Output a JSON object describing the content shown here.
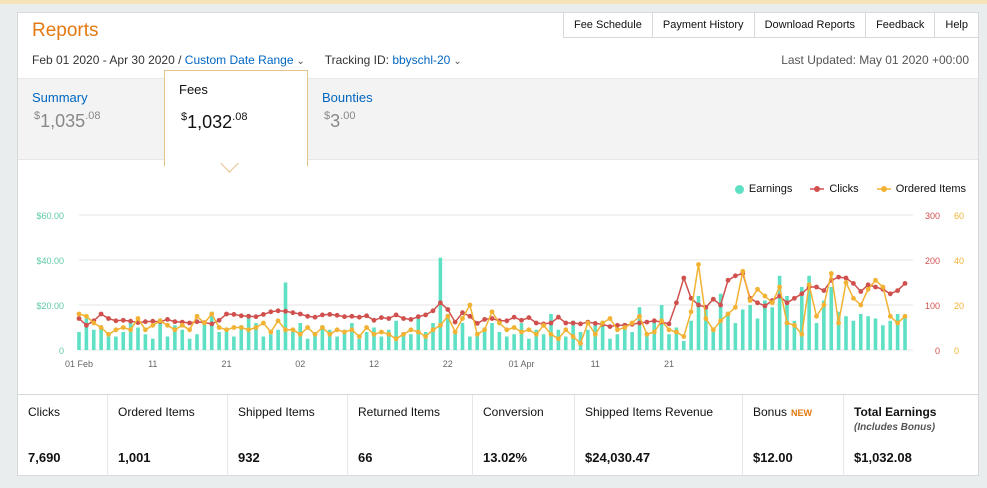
{
  "header": {
    "title": "Reports",
    "links": [
      "Fee Schedule",
      "Payment History",
      "Download Reports",
      "Feedback",
      "Help"
    ]
  },
  "filters": {
    "date_range": "Feb 01 2020 - Apr 30 2020 /",
    "custom_range": "Custom Date Range",
    "tracking_label": "Tracking ID:",
    "tracking_id": "bbyschl-20",
    "last_updated": "Last Updated: May 01 2020 +00:00"
  },
  "tabs": [
    {
      "label": "Summary",
      "currency": "$",
      "whole": "1,035",
      "cents": ".08"
    },
    {
      "label": "Fees",
      "currency": "$",
      "whole": "1,032",
      "cents": ".08"
    },
    {
      "label": "Bounties",
      "currency": "$",
      "whole": "3",
      "cents": ".00"
    }
  ],
  "legend": {
    "earnings": "Earnings",
    "clicks": "Clicks",
    "ordered": "Ordered Items"
  },
  "colors": {
    "earnings": "#5ee0c4",
    "clicks": "#d0504e",
    "ordered": "#f2b233",
    "accent": "#e47911",
    "link": "#0066c0"
  },
  "chart_data": {
    "type": "bar+line",
    "x_ticks": [
      "01 Feb",
      "11",
      "21",
      "02",
      "12",
      "22",
      "01 Apr",
      "11",
      "21"
    ],
    "y_left_ticks": [
      "$60.00",
      "$40.00",
      "$20.00",
      "0"
    ],
    "y_clicks_ticks": [
      "300",
      "200",
      "100",
      "0"
    ],
    "y_ordered_ticks": [
      "60",
      "40",
      "20",
      "0"
    ],
    "ylim_earnings": [
      0,
      60
    ],
    "ylim_clicks": [
      0,
      300
    ],
    "ylim_ordered": [
      0,
      60
    ],
    "series": [
      {
        "name": "Earnings",
        "values": [
          8,
          14,
          9,
          11,
          6,
          6,
          8,
          13,
          10,
          7,
          5,
          14,
          6,
          11,
          9,
          5,
          7,
          13,
          17,
          8,
          10,
          6,
          11,
          16,
          12,
          6,
          7,
          9,
          30,
          8,
          12,
          5,
          7,
          11,
          9,
          6,
          9,
          12,
          5,
          8,
          10,
          6,
          9,
          13,
          8,
          7,
          14,
          8,
          12,
          41,
          16,
          8,
          12,
          6,
          8,
          10,
          12,
          8,
          6,
          7,
          12,
          5,
          9,
          7,
          16,
          9,
          6,
          13,
          8,
          9,
          11,
          13,
          5,
          7,
          12,
          8,
          19,
          6,
          13,
          20,
          7,
          10,
          4,
          13,
          24,
          19,
          9,
          25,
          17,
          12,
          18,
          20,
          14,
          22,
          19,
          33,
          24,
          13,
          28,
          33,
          12,
          22,
          28,
          17,
          15,
          13,
          16,
          15,
          14,
          11,
          13,
          16,
          15
        ]
      },
      {
        "name": "Clicks",
        "values": [
          70,
          55,
          65,
          80,
          70,
          65,
          66,
          64,
          61,
          63,
          64,
          63,
          68,
          63,
          62,
          60,
          63,
          61,
          58,
          66,
          80,
          79,
          76,
          75,
          74,
          79,
          85,
          87,
          86,
          83,
          80,
          75,
          73,
          78,
          79,
          77,
          74,
          75,
          73,
          76,
          66,
          72,
          70,
          78,
          70,
          68,
          74,
          78,
          87,
          105,
          90,
          62,
          83,
          75,
          59,
          68,
          70,
          65,
          65,
          73,
          66,
          72,
          60,
          58,
          60,
          73,
          60,
          60,
          58,
          62,
          59,
          57,
          52,
          55,
          55,
          57,
          60,
          62,
          65,
          62,
          58,
          105,
          160,
          115,
          100,
          95,
          113,
          100,
          155,
          165,
          170,
          115,
          105,
          98,
          110,
          120,
          105,
          115,
          125,
          140,
          140,
          132,
          155,
          162,
          160,
          148,
          130,
          145,
          140,
          135,
          125,
          132,
          148
        ]
      },
      {
        "name": "Ordered Items",
        "values": [
          16,
          15,
          12,
          10,
          7,
          9,
          10,
          9,
          14,
          9,
          11,
          13,
          11,
          9,
          11,
          9,
          15,
          12,
          16,
          10,
          9,
          10,
          10,
          9,
          10,
          12,
          8,
          13,
          9,
          9,
          7,
          10,
          7,
          10,
          7,
          9,
          8,
          9,
          6,
          10,
          7,
          8,
          7,
          5,
          7,
          9,
          8,
          6,
          9,
          11,
          15,
          8,
          14,
          20,
          7,
          9,
          17,
          12,
          9,
          10,
          8,
          9,
          7,
          11,
          7,
          5,
          9,
          6,
          3,
          12,
          7,
          12,
          14,
          9,
          10,
          12,
          15,
          7,
          8,
          13,
          9,
          8,
          6,
          17,
          38,
          14,
          9,
          13,
          16,
          19,
          35,
          22,
          27,
          24,
          21,
          28,
          12,
          11,
          7,
          29,
          15,
          20,
          34,
          12,
          30,
          23,
          20,
          27,
          31,
          28,
          15,
          12,
          15
        ]
      }
    ]
  },
  "stats": [
    {
      "label": "Clicks",
      "value": "7,690"
    },
    {
      "label": "Ordered Items",
      "value": "1,001"
    },
    {
      "label": "Shipped Items",
      "value": "932"
    },
    {
      "label": "Returned Items",
      "value": "66"
    },
    {
      "label": "Conversion",
      "value": "13.02%"
    },
    {
      "label": "Shipped Items Revenue",
      "value": "$24,030.47"
    },
    {
      "label": "Bonus",
      "badge": "NEW",
      "value": "$12.00"
    },
    {
      "label": "Total Earnings",
      "sub": "(Includes Bonus)",
      "value": "$1,032.08"
    }
  ]
}
